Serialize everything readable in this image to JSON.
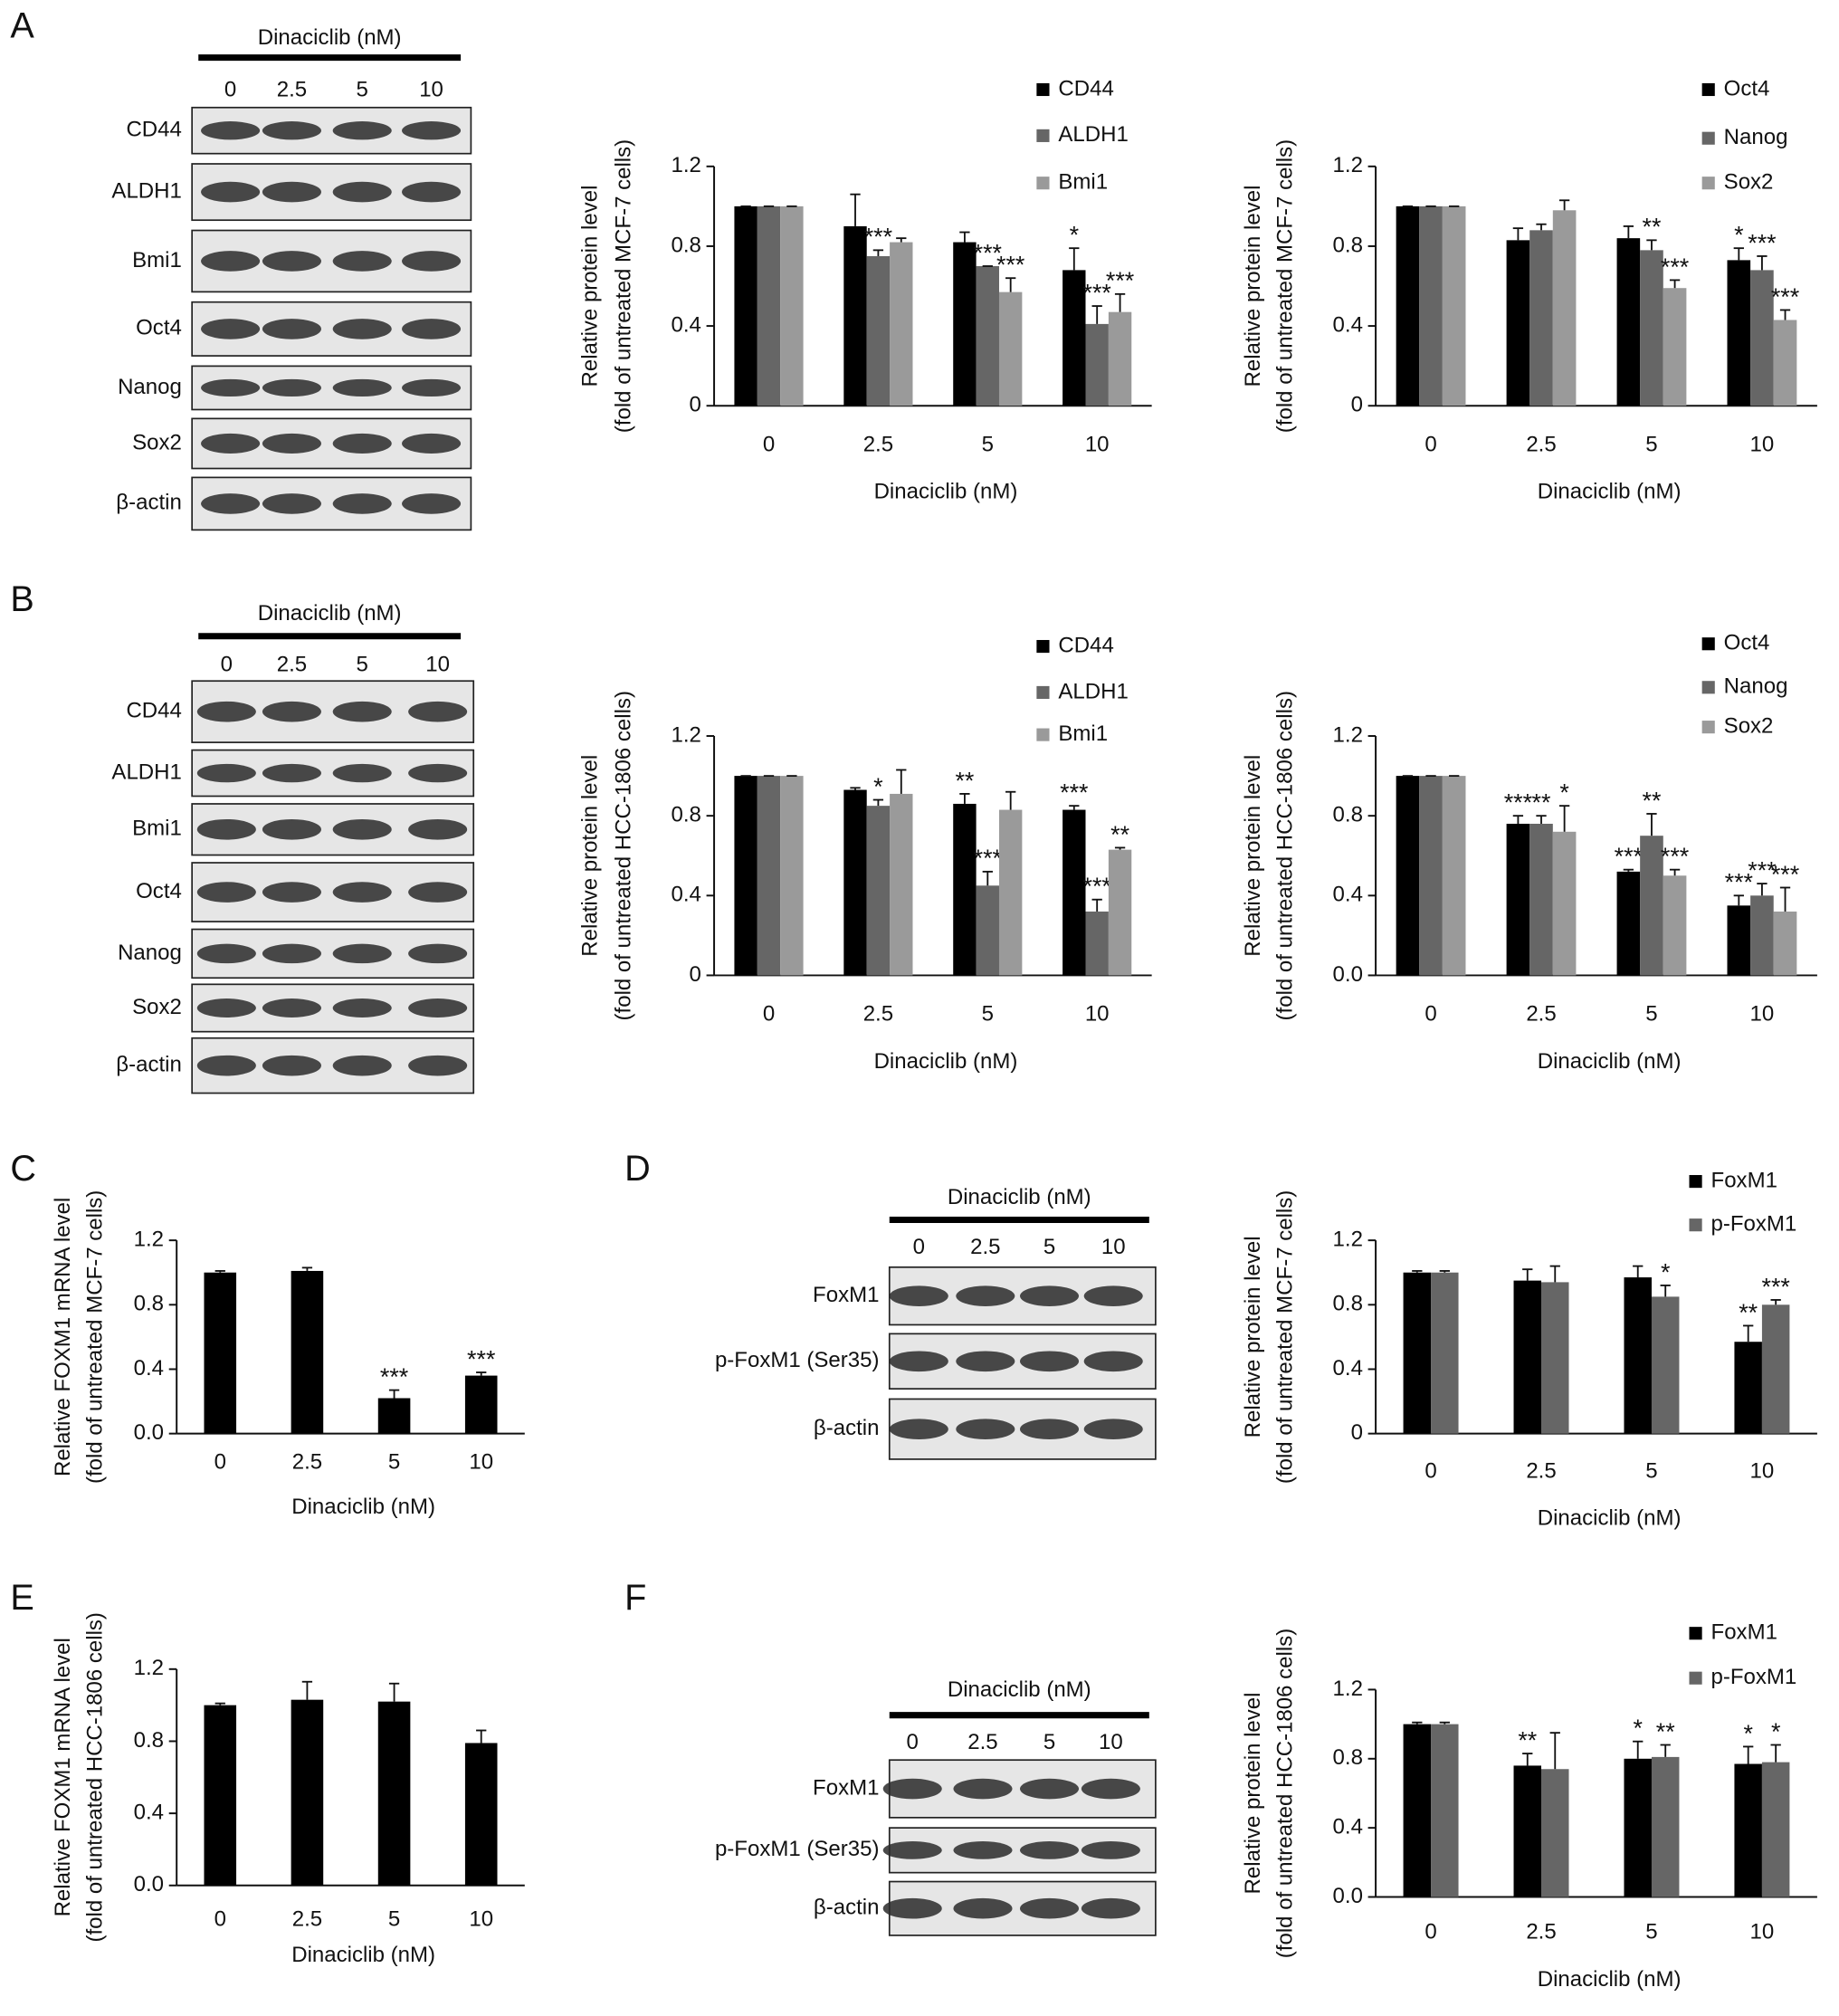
{
  "panels": [
    "A",
    "B",
    "C",
    "D",
    "E",
    "F"
  ],
  "blots": [
    {
      "title": "Dinaciclib (nM)",
      "lanes": [
        "0",
        "2.5",
        "5",
        "10"
      ],
      "rows": [
        "CD44",
        "ALDH1",
        "Bmi1",
        "Oct4",
        "Nanog",
        "Sox2",
        "β-actin"
      ]
    },
    {
      "title": "Dinaciclib (nM)",
      "lanes": [
        "0",
        "2.5",
        "5",
        "10"
      ],
      "rows": [
        "CD44",
        "ALDH1",
        "Bmi1",
        "Oct4",
        "Nanog",
        "Sox2",
        "β-actin"
      ]
    },
    {
      "title": "Dinaciclib (nM)",
      "lanes": [
        "0",
        "2.5",
        "5",
        "10"
      ],
      "rows": [
        "FoxM1",
        "p-FoxM1 (Ser35)",
        "β-actin"
      ]
    },
    {
      "title": "Dinaciclib (nM)",
      "lanes": [
        "0",
        "2.5",
        "5",
        "10"
      ],
      "rows": [
        "FoxM1",
        "p-FoxM1 (Ser35)",
        "β-actin"
      ]
    }
  ],
  "chart_data": [
    {
      "type": "bar",
      "ylabel": [
        "Relative protein level",
        "(fold of untreated MCF-7 cells)"
      ],
      "xlabel": "Dinaciclib (nM)",
      "categories": [
        "0",
        "2.5",
        "5",
        "10"
      ],
      "ylim": [
        0,
        1.2
      ],
      "yticks": [
        0,
        0.4,
        0.8,
        1.2
      ],
      "series": [
        {
          "name": "CD44",
          "color": "#000000",
          "values": [
            1.0,
            0.9,
            0.82,
            0.68
          ],
          "errors": [
            0,
            0.16,
            0.05,
            0.11
          ],
          "annotations": [
            null,
            null,
            null,
            "*"
          ]
        },
        {
          "name": "ALDH1",
          "color": "#666666",
          "values": [
            1.0,
            0.75,
            0.7,
            0.41
          ],
          "errors": [
            0,
            0.03,
            0,
            0.09
          ],
          "annotations": [
            null,
            "***",
            "***",
            "***"
          ]
        },
        {
          "name": "Bmi1",
          "color": "#9a9a9a",
          "values": [
            1.0,
            0.82,
            0.57,
            0.47
          ],
          "errors": [
            0,
            0.02,
            0.07,
            0.09
          ],
          "annotations": [
            null,
            null,
            "***",
            "***"
          ]
        }
      ]
    },
    {
      "type": "bar",
      "ylabel": [
        "Relative protein level",
        "(fold of untreated MCF-7 cells)"
      ],
      "xlabel": "Dinaciclib (nM)",
      "categories": [
        "0",
        "2.5",
        "5",
        "10"
      ],
      "ylim": [
        0,
        1.2
      ],
      "yticks": [
        0,
        0.4,
        0.8,
        1.2
      ],
      "series": [
        {
          "name": "Oct4",
          "color": "#000000",
          "values": [
            1.0,
            0.83,
            0.84,
            0.73
          ],
          "errors": [
            0,
            0.06,
            0.06,
            0.06
          ],
          "annotations": [
            null,
            null,
            null,
            "*"
          ]
        },
        {
          "name": "Nanog",
          "color": "#666666",
          "values": [
            1.0,
            0.88,
            0.78,
            0.68
          ],
          "errors": [
            0,
            0.03,
            0.05,
            0.07
          ],
          "annotations": [
            null,
            null,
            "**",
            "***"
          ]
        },
        {
          "name": "Sox2",
          "color": "#9a9a9a",
          "values": [
            1.0,
            0.98,
            0.59,
            0.43
          ],
          "errors": [
            0,
            0.05,
            0.04,
            0.05
          ],
          "annotations": [
            null,
            null,
            "***",
            "***"
          ]
        }
      ]
    },
    {
      "type": "bar",
      "ylabel": [
        "Relative protein level",
        "(fold of untreated HCC-1806 cells)"
      ],
      "xlabel": "Dinaciclib (nM)",
      "categories": [
        "0",
        "2.5",
        "5",
        "10"
      ],
      "ylim": [
        0,
        1.2
      ],
      "yticks": [
        0,
        0.4,
        0.8,
        1.2
      ],
      "series": [
        {
          "name": "CD44",
          "color": "#000000",
          "values": [
            1.0,
            0.93,
            0.86,
            0.83
          ],
          "errors": [
            0,
            0.01,
            0.05,
            0.02
          ],
          "annotations": [
            null,
            null,
            "**",
            "***"
          ]
        },
        {
          "name": "ALDH1",
          "color": "#666666",
          "values": [
            1.0,
            0.85,
            0.45,
            0.32
          ],
          "errors": [
            0,
            0.03,
            0.07,
            0.06
          ],
          "annotations": [
            null,
            "*",
            "***",
            "***"
          ]
        },
        {
          "name": "Bmi1",
          "color": "#9a9a9a",
          "values": [
            1.0,
            0.91,
            0.83,
            0.63
          ],
          "errors": [
            0,
            0.12,
            0.09,
            0.01
          ],
          "annotations": [
            null,
            null,
            null,
            "**"
          ]
        }
      ]
    },
    {
      "type": "bar",
      "ylabel": [
        "Relative protein level",
        "(fold of untreated HCC-1806 cells)"
      ],
      "xlabel": "Dinaciclib (nM)",
      "categories": [
        "0",
        "2.5",
        "5",
        "10"
      ],
      "ylim": [
        0,
        1.2
      ],
      "yticks": [
        {
          "value": 0,
          "label": "0.0"
        },
        0.4,
        0.8,
        1.2
      ],
      "series": [
        {
          "name": "Oct4",
          "color": "#000000",
          "values": [
            1.0,
            0.76,
            0.52,
            0.35
          ],
          "errors": [
            0,
            0.04,
            0.01,
            0.05
          ],
          "annotations": [
            null,
            "***",
            "***",
            "***"
          ]
        },
        {
          "name": "Nanog",
          "color": "#666666",
          "values": [
            1.0,
            0.76,
            0.7,
            0.4
          ],
          "errors": [
            0,
            0.04,
            0.11,
            0.06
          ],
          "annotations": [
            null,
            "**",
            "**",
            "***"
          ]
        },
        {
          "name": "Sox2",
          "color": "#9a9a9a",
          "values": [
            1.0,
            0.72,
            0.5,
            0.32
          ],
          "errors": [
            0,
            0.13,
            0.03,
            0.12
          ],
          "annotations": [
            null,
            "*",
            "***",
            "***"
          ]
        }
      ]
    },
    {
      "type": "bar",
      "ylabel": [
        "Relative FOXM1 mRNA level",
        "(fold of untreated MCF-7 cells)"
      ],
      "xlabel": "Dinaciclib (nM)",
      "categories": [
        "0",
        "2.5",
        "5",
        "10"
      ],
      "ylim": [
        0,
        1.2
      ],
      "yticks": [
        {
          "value": 0,
          "label": "0.0"
        },
        0.4,
        0.8,
        1.2
      ],
      "color": "#000000",
      "values": [
        1.0,
        1.01,
        0.22,
        0.36
      ],
      "errors": [
        0.01,
        0.02,
        0.05,
        0.02
      ],
      "annotations": [
        null,
        null,
        "***",
        "***"
      ]
    },
    {
      "type": "bar",
      "ylabel": [
        "Relative protein level",
        "(fold of untreated MCF-7 cells)"
      ],
      "xlabel": "Dinaciclib (nM)",
      "categories": [
        "0",
        "2.5",
        "5",
        "10"
      ],
      "ylim": [
        0,
        1.2
      ],
      "yticks": [
        0,
        0.4,
        0.8,
        1.2
      ],
      "series": [
        {
          "name": "FoxM1",
          "color": "#000000",
          "values": [
            1.0,
            0.95,
            0.97,
            0.57
          ],
          "errors": [
            0.01,
            0.07,
            0.07,
            0.1
          ],
          "annotations": [
            null,
            null,
            null,
            "**"
          ]
        },
        {
          "name": "p-FoxM1",
          "color": "#666666",
          "values": [
            1.0,
            0.94,
            0.85,
            0.8
          ],
          "errors": [
            0.01,
            0.1,
            0.07,
            0.03
          ],
          "annotations": [
            null,
            null,
            "*",
            "***"
          ]
        }
      ]
    },
    {
      "type": "bar",
      "ylabel": [
        "Relative FOXM1 mRNA level",
        "(fold of untreated HCC-1806 cells)"
      ],
      "xlabel": "Dinaciclib (nM)",
      "categories": [
        "0",
        "2.5",
        "5",
        "10"
      ],
      "ylim": [
        0,
        1.2
      ],
      "yticks": [
        {
          "value": 0,
          "label": "0.0"
        },
        0.4,
        0.8,
        1.2
      ],
      "color": "#000000",
      "values": [
        1.0,
        1.03,
        1.02,
        0.79
      ],
      "errors": [
        0.01,
        0.1,
        0.1,
        0.07
      ]
    },
    {
      "type": "bar",
      "ylabel": [
        "Relative protein level",
        "(fold of untreated HCC-1806 cells)"
      ],
      "xlabel": "Dinaciclib (nM)",
      "categories": [
        "0",
        "2.5",
        "5",
        "10"
      ],
      "ylim": [
        0,
        1.2
      ],
      "yticks": [
        {
          "value": 0,
          "label": "0.0"
        },
        0.4,
        0.8,
        1.2
      ],
      "series": [
        {
          "name": "FoxM1",
          "color": "#000000",
          "values": [
            1.0,
            0.76,
            0.8,
            0.77
          ],
          "errors": [
            0.01,
            0.07,
            0.1,
            0.1
          ],
          "annotations": [
            null,
            "**",
            "*",
            "*"
          ]
        },
        {
          "name": "p-FoxM1",
          "color": "#666666",
          "values": [
            1.0,
            0.74,
            0.81,
            0.78
          ],
          "errors": [
            0.01,
            0.21,
            0.07,
            0.1
          ],
          "annotations": [
            null,
            null,
            "**",
            "*"
          ]
        }
      ]
    }
  ]
}
